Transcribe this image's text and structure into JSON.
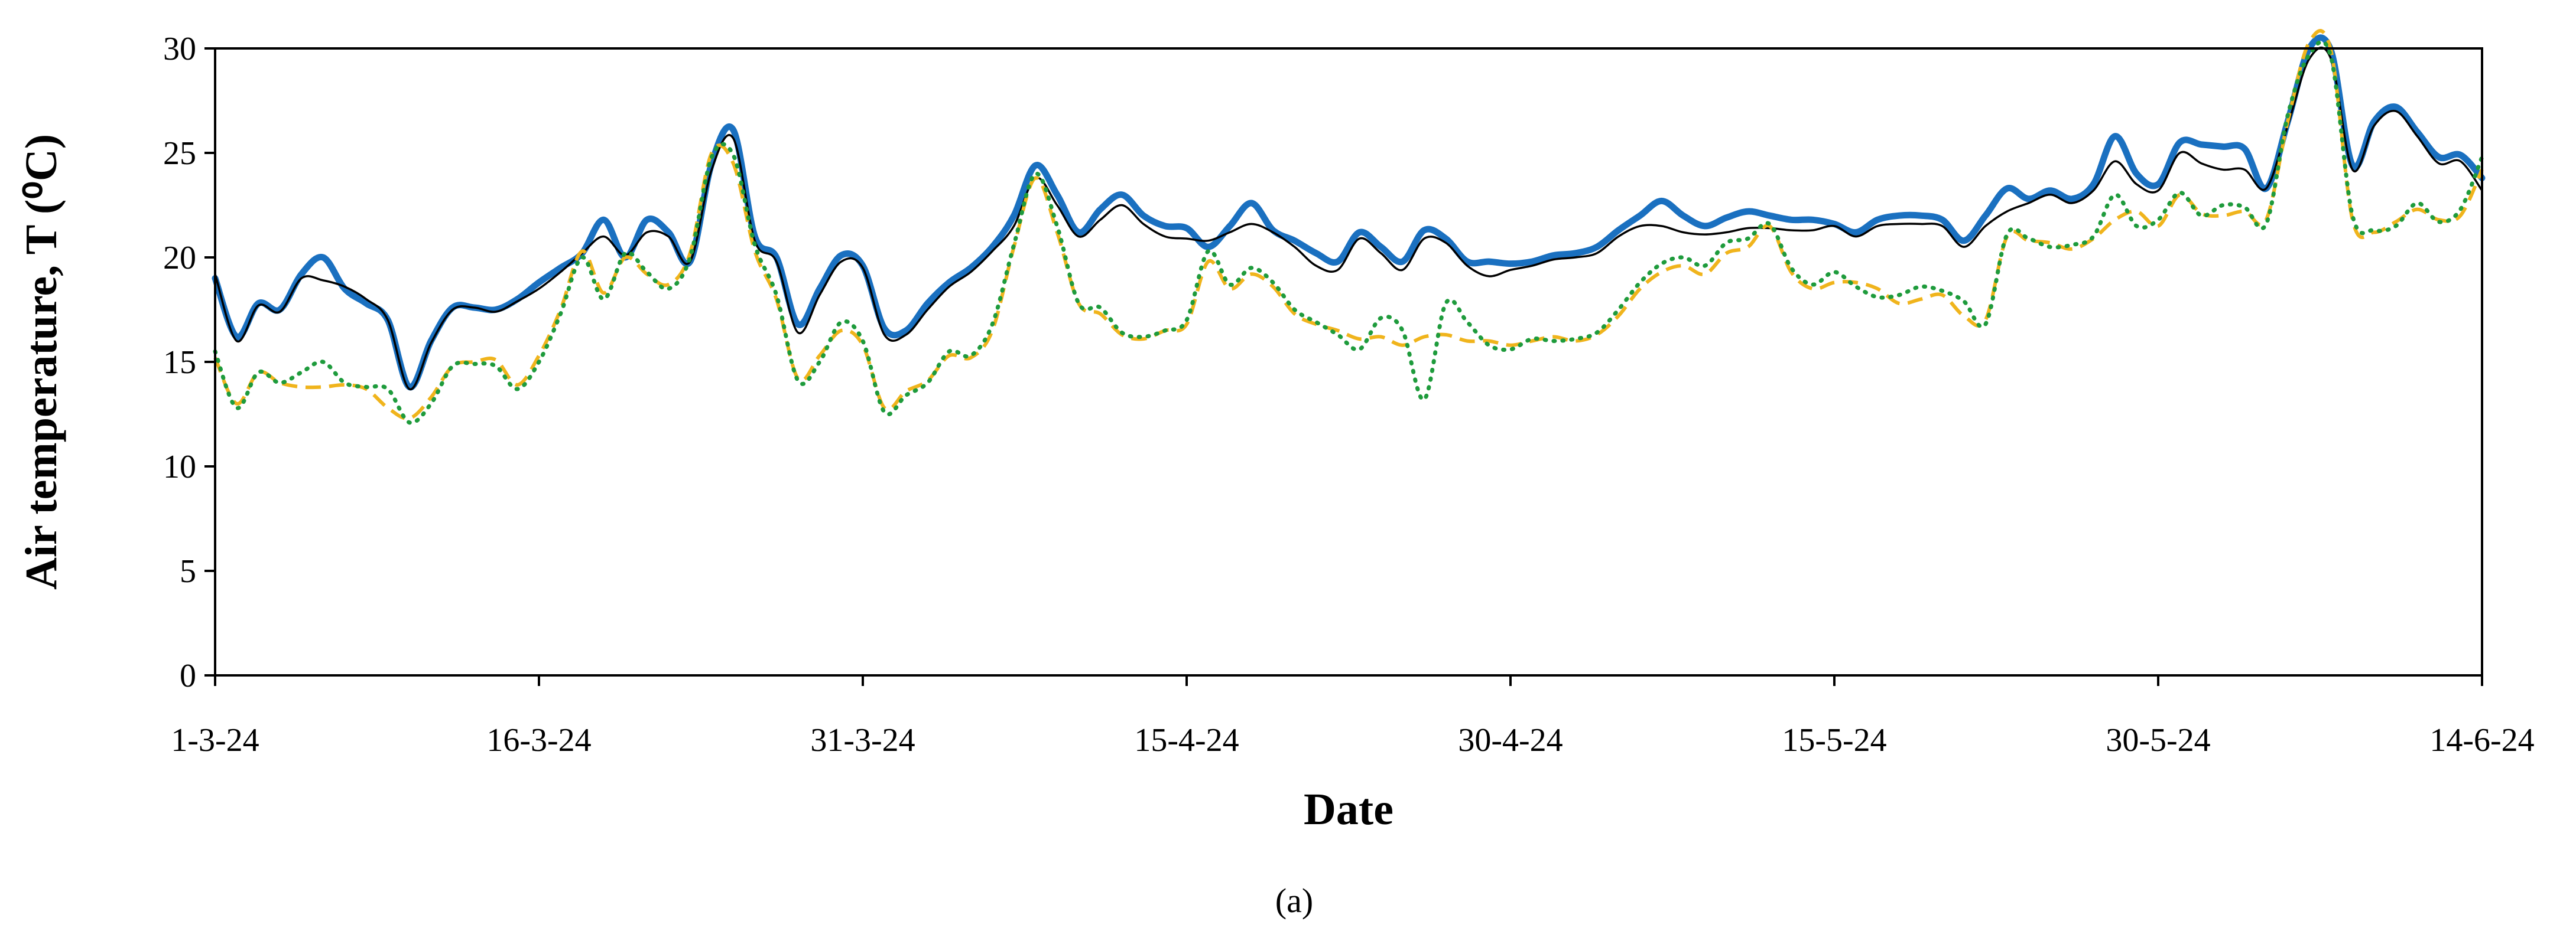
{
  "chart_data": {
    "type": "line",
    "title": "",
    "xlabel": "Date",
    "ylabel": "Air temperature, T (⁰C)",
    "caption": "(a)",
    "ylim": [
      0,
      30
    ],
    "yticks": [
      "0",
      "5",
      "10",
      "15",
      "20",
      "25",
      "30"
    ],
    "xlim": [
      "2024-03-01",
      "2024-06-14"
    ],
    "xticks": [
      {
        "date": "2024-03-01",
        "label": "1-3-24"
      },
      {
        "date": "2024-03-16",
        "label": "16-3-24"
      },
      {
        "date": "2024-03-31",
        "label": "31-3-24"
      },
      {
        "date": "2024-04-15",
        "label": "15-4-24"
      },
      {
        "date": "2024-04-30",
        "label": "30-4-24"
      },
      {
        "date": "2024-05-15",
        "label": "15-5-24"
      },
      {
        "date": "2024-05-30",
        "label": "30-5-24"
      },
      {
        "date": "2024-06-14",
        "label": "14-6-24"
      }
    ],
    "grid": false,
    "legend": "none",
    "x": [
      "2024-03-01",
      "2024-03-02",
      "2024-03-03",
      "2024-03-04",
      "2024-03-05",
      "2024-03-06",
      "2024-03-07",
      "2024-03-08",
      "2024-03-09",
      "2024-03-10",
      "2024-03-11",
      "2024-03-12",
      "2024-03-13",
      "2024-03-14",
      "2024-03-15",
      "2024-03-16",
      "2024-03-17",
      "2024-03-18",
      "2024-03-19",
      "2024-03-20",
      "2024-03-21",
      "2024-03-22",
      "2024-03-23",
      "2024-03-24",
      "2024-03-25",
      "2024-03-26",
      "2024-03-27",
      "2024-03-28",
      "2024-03-29",
      "2024-03-30",
      "2024-03-31",
      "2024-04-01",
      "2024-04-02",
      "2024-04-03",
      "2024-04-04",
      "2024-04-05",
      "2024-04-06",
      "2024-04-07",
      "2024-04-08",
      "2024-04-09",
      "2024-04-10",
      "2024-04-11",
      "2024-04-12",
      "2024-04-13",
      "2024-04-14",
      "2024-04-15",
      "2024-04-16",
      "2024-04-17",
      "2024-04-18",
      "2024-04-19",
      "2024-04-20",
      "2024-04-21",
      "2024-04-22",
      "2024-04-23",
      "2024-04-24",
      "2024-04-25",
      "2024-04-26",
      "2024-04-27",
      "2024-04-28",
      "2024-04-29",
      "2024-04-30",
      "2024-05-01",
      "2024-05-02",
      "2024-05-03",
      "2024-05-04",
      "2024-05-05",
      "2024-05-06",
      "2024-05-07",
      "2024-05-08",
      "2024-05-09",
      "2024-05-10",
      "2024-05-11",
      "2024-05-12",
      "2024-05-13",
      "2024-05-14",
      "2024-05-15",
      "2024-05-16",
      "2024-05-17",
      "2024-05-18",
      "2024-05-19",
      "2024-05-20",
      "2024-05-21",
      "2024-05-22",
      "2024-05-23",
      "2024-05-24",
      "2024-05-25",
      "2024-05-26",
      "2024-05-27",
      "2024-05-28",
      "2024-05-29",
      "2024-05-30",
      "2024-05-31",
      "2024-06-01",
      "2024-06-02",
      "2024-06-03",
      "2024-06-04",
      "2024-06-05",
      "2024-06-06",
      "2024-06-07",
      "2024-06-08",
      "2024-06-09",
      "2024-06-10",
      "2024-06-11",
      "2024-06-12",
      "2024-06-13",
      "2024-06-14"
    ],
    "series": [
      {
        "color": "#1a70c0",
        "style": "thick-solid",
        "values": [
          19.0,
          16.2,
          17.8,
          17.5,
          19.2,
          20.0,
          18.5,
          17.8,
          17.0,
          13.8,
          16.0,
          17.6,
          17.6,
          17.5,
          18.0,
          18.8,
          19.5,
          20.2,
          21.8,
          20.0,
          21.8,
          21.2,
          19.8,
          24.5,
          26.1,
          21.0,
          20.0,
          16.8,
          18.5,
          20.1,
          19.6,
          16.6,
          16.5,
          17.8,
          18.8,
          19.5,
          20.5,
          22.0,
          24.4,
          23.0,
          21.2,
          22.3,
          23.0,
          22.0,
          21.5,
          21.4,
          20.5,
          21.5,
          22.6,
          21.3,
          20.8,
          20.2,
          19.8,
          21.2,
          20.5,
          19.8,
          21.3,
          20.9,
          19.8,
          19.8,
          19.7,
          19.8,
          20.1,
          20.2,
          20.5,
          21.3,
          22.0,
          22.7,
          22.0,
          21.5,
          21.9,
          22.2,
          22.0,
          21.8,
          21.8,
          21.6,
          21.2,
          21.8,
          22.0,
          22.0,
          21.8,
          20.8,
          22.0,
          23.3,
          22.8,
          23.2,
          22.8,
          23.5,
          25.8,
          24.0,
          23.5,
          25.5,
          25.4,
          25.3,
          25.2,
          23.3,
          26.5,
          30.0,
          29.9,
          24.4,
          26.5,
          27.2,
          26.0,
          24.8,
          24.9,
          23.8
        ]
      },
      {
        "color": "#000000",
        "style": "thin-solid",
        "values": [
          19.2,
          16.0,
          17.7,
          17.4,
          19.0,
          18.9,
          18.6,
          18.0,
          17.0,
          13.7,
          15.9,
          17.5,
          17.6,
          17.4,
          17.9,
          18.5,
          19.3,
          20.2,
          21.0,
          20.1,
          21.2,
          21.0,
          19.8,
          24.2,
          25.7,
          20.8,
          19.8,
          16.4,
          18.2,
          19.8,
          19.5,
          16.3,
          16.3,
          17.5,
          18.6,
          19.3,
          20.3,
          21.5,
          23.8,
          22.5,
          21.0,
          21.8,
          22.5,
          21.6,
          21.0,
          20.9,
          20.8,
          21.2,
          21.6,
          21.2,
          20.5,
          19.6,
          19.4,
          20.9,
          20.2,
          19.4,
          20.9,
          20.7,
          19.6,
          19.1,
          19.4,
          19.6,
          19.9,
          20.0,
          20.2,
          21.0,
          21.5,
          21.5,
          21.2,
          21.1,
          21.2,
          21.4,
          21.4,
          21.3,
          21.3,
          21.5,
          21.0,
          21.5,
          21.6,
          21.6,
          21.5,
          20.5,
          21.5,
          22.2,
          22.6,
          23.0,
          22.6,
          23.2,
          24.6,
          23.5,
          23.2,
          25.0,
          24.5,
          24.2,
          24.2,
          23.3,
          26.3,
          29.5,
          29.5,
          24.2,
          26.3,
          27.0,
          25.8,
          24.5,
          24.6,
          23.2
        ]
      },
      {
        "color": "#f0b41c",
        "style": "dashed",
        "values": [
          15.2,
          13.0,
          14.5,
          14.0,
          13.8,
          13.8,
          13.9,
          13.7,
          12.8,
          12.3,
          13.3,
          14.8,
          15.0,
          15.1,
          13.9,
          15.3,
          17.5,
          20.3,
          18.3,
          20.0,
          19.2,
          18.7,
          20.2,
          25.0,
          24.5,
          20.3,
          18.0,
          14.2,
          15.3,
          16.5,
          15.8,
          12.8,
          13.6,
          14.1,
          15.3,
          15.2,
          16.5,
          20.5,
          23.8,
          21.2,
          17.8,
          17.3,
          16.3,
          16.1,
          16.5,
          16.8,
          19.8,
          18.5,
          19.2,
          18.6,
          17.3,
          16.8,
          16.5,
          16.1,
          16.2,
          15.8,
          16.2,
          16.3,
          16.0,
          16.0,
          15.8,
          16.0,
          16.2,
          16.0,
          16.3,
          17.2,
          18.5,
          19.3,
          19.6,
          19.2,
          20.2,
          20.5,
          21.5,
          19.3,
          18.5,
          18.8,
          18.8,
          18.5,
          17.8,
          18.0,
          18.2,
          17.2,
          17.0,
          21.0,
          20.8,
          20.7,
          20.4,
          20.9,
          21.8,
          22.2,
          21.5,
          23.0,
          22.1,
          22.0,
          22.2,
          21.8,
          26.5,
          30.3,
          29.9,
          21.8,
          21.2,
          21.7,
          22.3,
          21.8,
          22.0,
          24.2
        ]
      },
      {
        "color": "#1e9b3c",
        "style": "dotted",
        "values": [
          15.5,
          12.8,
          14.5,
          14.0,
          14.5,
          15.0,
          14.0,
          13.8,
          13.7,
          12.1,
          13.0,
          14.8,
          14.9,
          14.8,
          13.7,
          15.0,
          17.3,
          20.0,
          18.0,
          20.2,
          19.3,
          18.5,
          20.0,
          24.8,
          24.9,
          20.6,
          18.2,
          14.1,
          15.0,
          16.9,
          16.0,
          12.6,
          13.4,
          14.0,
          15.5,
          15.3,
          16.8,
          20.6,
          24.0,
          21.5,
          17.8,
          17.6,
          16.4,
          16.2,
          16.5,
          17.0,
          20.3,
          18.7,
          19.5,
          18.8,
          17.5,
          16.9,
          16.3,
          15.6,
          17.1,
          16.5,
          13.2,
          17.8,
          16.9,
          15.8,
          15.6,
          16.1,
          16.0,
          16.1,
          16.4,
          17.5,
          18.8,
          19.7,
          20.0,
          19.6,
          20.7,
          20.9,
          21.6,
          19.5,
          18.7,
          19.3,
          18.6,
          18.1,
          18.2,
          18.6,
          18.4,
          17.9,
          16.8,
          21.1,
          20.9,
          20.5,
          20.6,
          21.0,
          23.0,
          21.5,
          21.8,
          23.1,
          22.0,
          22.5,
          22.4,
          21.6,
          26.8,
          29.7,
          29.6,
          22.0,
          21.3,
          21.5,
          22.6,
          21.7,
          22.3,
          24.8
        ]
      }
    ]
  }
}
